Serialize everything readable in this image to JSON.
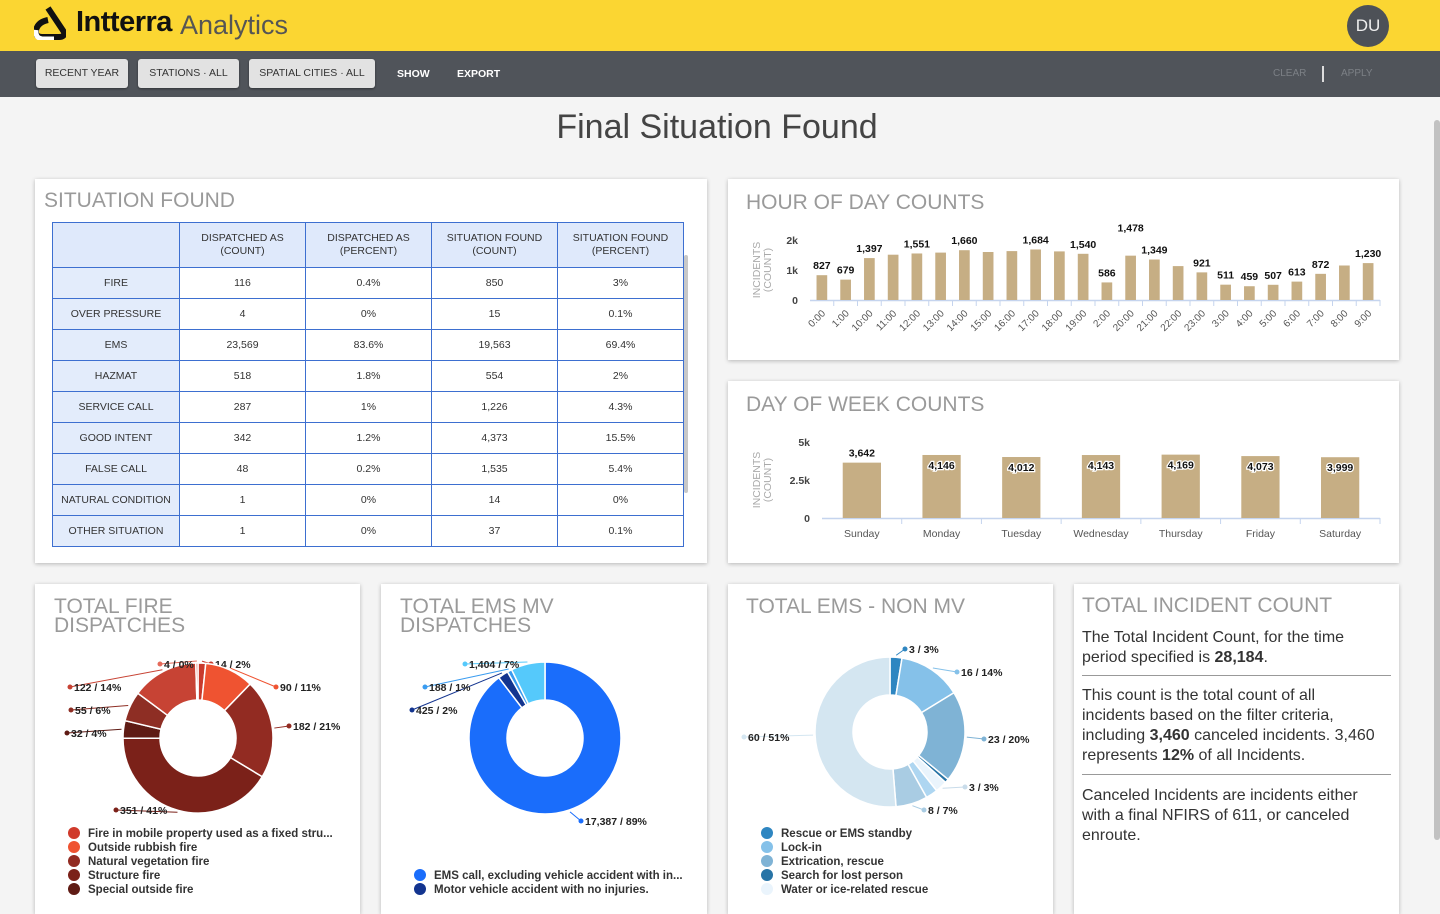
{
  "header": {
    "brand": "Intterra",
    "product": "Analytics",
    "avatar": "DU"
  },
  "toolbar": {
    "recent_year": "RECENT YEAR",
    "stations": "STATIONS · ALL",
    "spatial": "SPATIAL CITIES · ALL",
    "show": "SHOW",
    "export": "EXPORT",
    "clear": "CLEAR",
    "apply": "APPLY"
  },
  "page_title": "Final Situation Found",
  "situation": {
    "title": "SITUATION FOUND",
    "columns": [
      "",
      "DISPATCHED AS (COUNT)",
      "DISPATCHED AS (PERCENT)",
      "SITUATION FOUND (COUNT)",
      "SITUATION FOUND (PERCENT)"
    ],
    "rows": [
      [
        "FIRE",
        "116",
        "0.4%",
        "850",
        "3%"
      ],
      [
        "OVER PRESSURE",
        "4",
        "0%",
        "15",
        "0.1%"
      ],
      [
        "EMS",
        "23,569",
        "83.6%",
        "19,563",
        "69.4%"
      ],
      [
        "HAZMAT",
        "518",
        "1.8%",
        "554",
        "2%"
      ],
      [
        "SERVICE CALL",
        "287",
        "1%",
        "1,226",
        "4.3%"
      ],
      [
        "GOOD INTENT",
        "342",
        "1.2%",
        "4,373",
        "15.5%"
      ],
      [
        "FALSE CALL",
        "48",
        "0.2%",
        "1,535",
        "5.4%"
      ],
      [
        "NATURAL CONDITION",
        "1",
        "0%",
        "14",
        "0%"
      ],
      [
        "OTHER SITUATION",
        "1",
        "0%",
        "37",
        "0.1%"
      ]
    ]
  },
  "chart_data": [
    {
      "type": "bar",
      "title": "HOUR OF DAY COUNTS",
      "ylabel": "INCIDENTS (COUNT)",
      "yticks": [
        "0",
        "1k",
        "2k"
      ],
      "ylim": [
        0,
        2000
      ],
      "color": "#c6ae84",
      "categories": [
        "0:00",
        "1:00",
        "10:00",
        "11:00",
        "12:00",
        "13:00",
        "14:00",
        "15:00",
        "16:00",
        "17:00",
        "18:00",
        "19:00",
        "2:00",
        "20:00",
        "21:00",
        "22:00",
        "23:00",
        "3:00",
        "4:00",
        "5:00",
        "6:00",
        "7:00",
        "8:00",
        "9:00"
      ],
      "values": [
        827,
        679,
        1397,
        1510,
        1551,
        1580,
        1660,
        1600,
        1630,
        1684,
        1620,
        1540,
        586,
        1478,
        1349,
        1130,
        921,
        511,
        459,
        507,
        613,
        872,
        1150,
        1230
      ],
      "labels": [
        "827",
        "679",
        "1,397",
        null,
        "1,551",
        null,
        "1,660",
        null,
        null,
        "1,684",
        null,
        "1,540",
        "586",
        "1,478",
        "1,349",
        null,
        "921",
        "511",
        "459",
        "507",
        "613",
        "872",
        null,
        "1,230"
      ]
    },
    {
      "type": "bar",
      "title": "DAY OF WEEK COUNTS",
      "ylabel": "INCIDENTS (COUNT)",
      "yticks": [
        "0",
        "2.5k",
        "5k"
      ],
      "ylim": [
        0,
        5000
      ],
      "color": "#c6ae84",
      "categories": [
        "Sunday",
        "Monday",
        "Tuesday",
        "Wednesday",
        "Thursday",
        "Friday",
        "Saturday"
      ],
      "values": [
        3642,
        4146,
        4012,
        4143,
        4169,
        4073,
        3999
      ],
      "labels": [
        "3,642",
        "4,146",
        "4,012",
        "4,143",
        "4,169",
        "4,073",
        "3,999"
      ]
    },
    {
      "type": "pie",
      "title": "TOTAL FIRE DISPATCHES",
      "slices": [
        {
          "value": 14,
          "label": "14 / 2%",
          "color": "#c93a2c"
        },
        {
          "value": 90,
          "label": "90 / 11%",
          "color": "#ef5331"
        },
        {
          "value": 182,
          "label": "182 / 21%",
          "color": "#922b22"
        },
        {
          "value": 351,
          "label": "351 / 41%",
          "color": "#7b2119"
        },
        {
          "value": 32,
          "label": "32 / 4%",
          "color": "#5f1b14"
        },
        {
          "value": 55,
          "label": "55 / 6%",
          "color": "#8e2e24"
        },
        {
          "value": 122,
          "label": "122 / 14%",
          "color": "#c74334"
        },
        {
          "value": 4,
          "label": "4 / 0%",
          "color": "#e56a5a"
        }
      ],
      "legend": [
        {
          "label": "Fire in mobile property used as a fixed stru...",
          "color": "#d03a2b"
        },
        {
          "label": "Outside rubbish fire",
          "color": "#ef5331"
        },
        {
          "label": "Natural vegetation fire",
          "color": "#922b22"
        },
        {
          "label": "Structure fire",
          "color": "#7b2119"
        },
        {
          "label": "Special outside fire",
          "color": "#5f1b14"
        }
      ]
    },
    {
      "type": "pie",
      "title": "TOTAL EMS MV DISPATCHES",
      "slices": [
        {
          "value": 17387,
          "label": "17,387 / 89%",
          "color": "#1a6dfb"
        },
        {
          "value": 425,
          "label": "425 / 2%",
          "color": "#13348f"
        },
        {
          "value": 188,
          "label": "188 / 1%",
          "color": "#3a9cf0"
        },
        {
          "value": 1404,
          "label": "1,404 / 7%",
          "color": "#55c9fb"
        }
      ],
      "legend": [
        {
          "label": "EMS call, excluding vehicle accident with in...",
          "color": "#1a6dfb"
        },
        {
          "label": "Motor vehicle accident with no injuries.",
          "color": "#13348f"
        }
      ]
    },
    {
      "type": "pie",
      "title": "TOTAL EMS - NON MV",
      "slices": [
        {
          "value": 3,
          "label": "3 / 3%",
          "color": "#2e86c1"
        },
        {
          "value": 16,
          "label": "16 / 14%",
          "color": "#85c1e9"
        },
        {
          "value": 23,
          "label": "23 / 20%",
          "color": "#7fb3d5"
        },
        {
          "value": 1,
          "label": "",
          "color": "#2874a6"
        },
        {
          "value": 3,
          "label": "3 / 3%",
          "color": "#eaf4fc"
        },
        {
          "value": 3,
          "label": "",
          "color": "#aed6f1"
        },
        {
          "value": 8,
          "label": "8 / 7%",
          "color": "#a9cce3"
        },
        {
          "value": 60,
          "label": "60 / 51%",
          "color": "#d4e6f1"
        }
      ],
      "legend": [
        {
          "label": "Rescue or EMS standby",
          "color": "#2e86c1"
        },
        {
          "label": "Lock-in",
          "color": "#85c1e9"
        },
        {
          "label": "Extrication, rescue",
          "color": "#7fb3d5"
        },
        {
          "label": "Search for lost person",
          "color": "#2874a6"
        },
        {
          "label": "Water or ice-related rescue",
          "color": "#eaf4fc"
        }
      ]
    }
  ],
  "incident": {
    "title": "TOTAL INCIDENT COUNT",
    "p1a": "The Total Incident Count, for the time period specified is ",
    "p1b": "28,184",
    "p1c": ".",
    "p2a": "This count is the total count of all incidents based on the filter criteria, including ",
    "p2b": "3,460",
    "p2c": " canceled incidents. 3,460 represents ",
    "p2d": "12%",
    "p2e": " of all Incidents.",
    "p3": "Canceled Incidents are incidents either with a final NFIRS of 611, or canceled enroute."
  }
}
